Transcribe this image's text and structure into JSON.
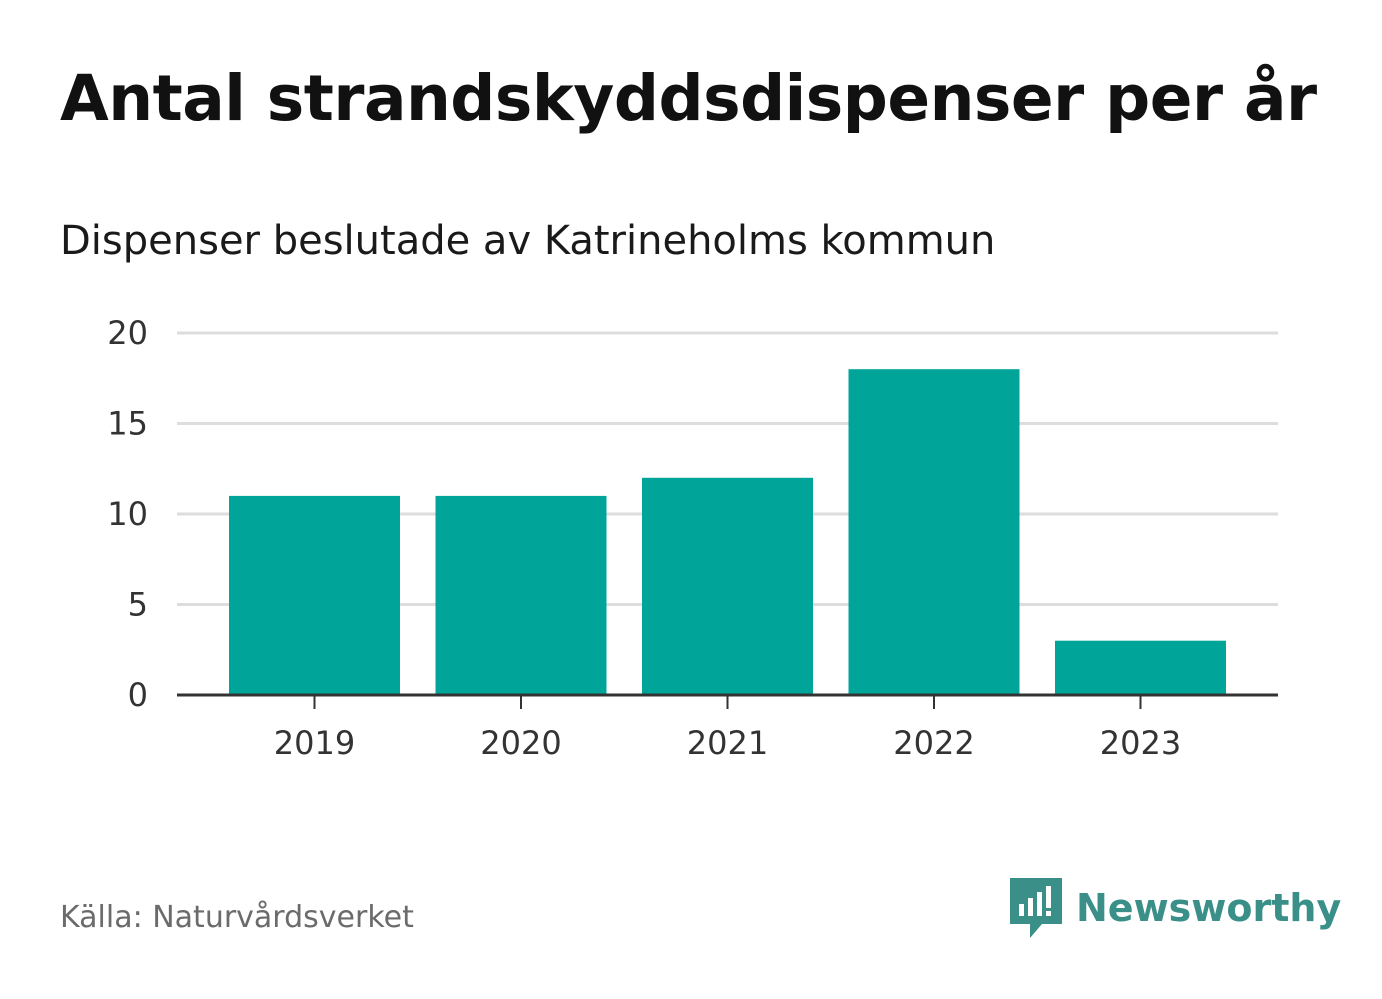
{
  "header": {
    "title": "Antal strandskyddsdispenser per år",
    "subtitle": "Dispenser beslutade av Katrineholms kommun"
  },
  "footer": {
    "source": "Källa: Naturvårdsverket",
    "brand": "Newsworthy"
  },
  "colors": {
    "bar": "#00a499",
    "grid": "#dddddd",
    "axis": "#333333",
    "brand": "#3a8f88"
  },
  "chart_data": {
    "type": "bar",
    "title": "Antal strandskyddsdispenser per år",
    "subtitle": "Dispenser beslutade av Katrineholms kommun",
    "xlabel": "",
    "ylabel": "",
    "categories": [
      "2019",
      "2020",
      "2021",
      "2022",
      "2023"
    ],
    "values": [
      11,
      11,
      12,
      18,
      3
    ],
    "ylim": [
      0,
      20
    ],
    "yticks": [
      0,
      5,
      10,
      15,
      20
    ],
    "grid": true,
    "legend": "none"
  }
}
